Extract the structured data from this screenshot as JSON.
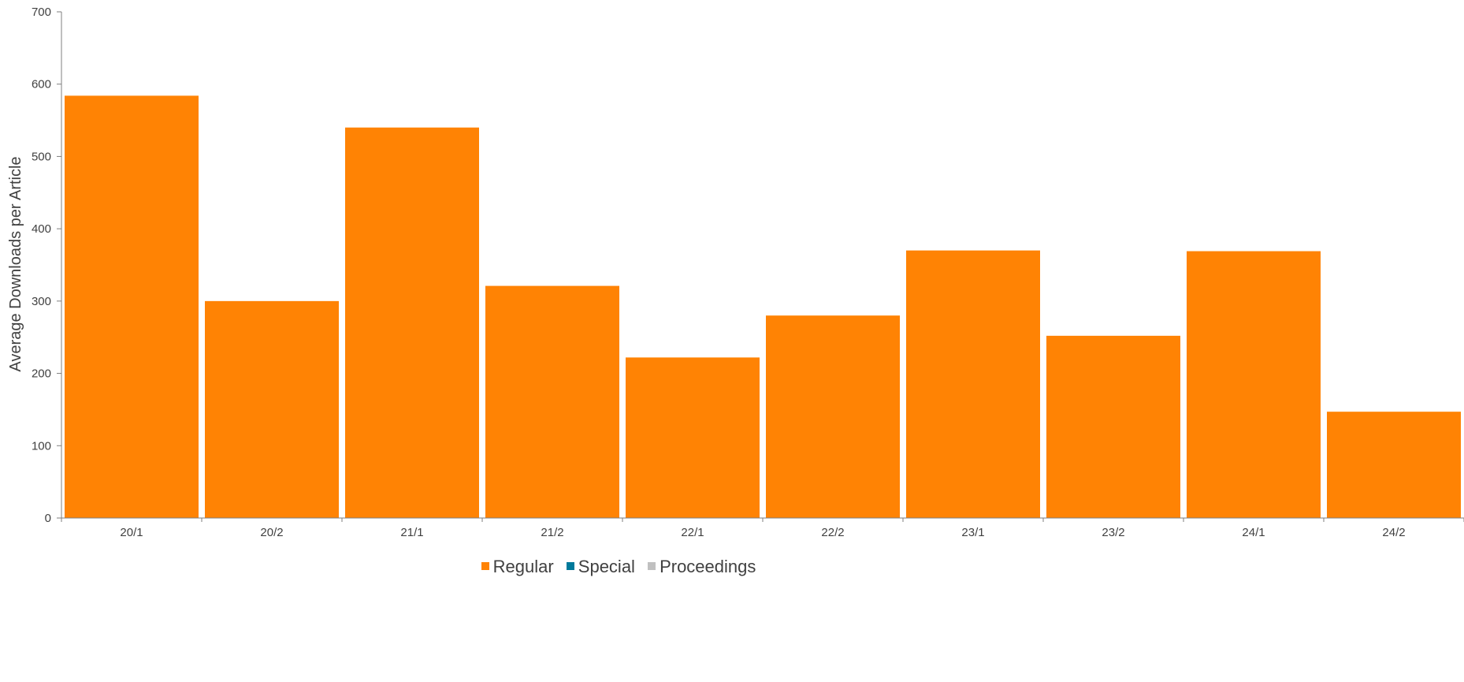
{
  "chart_data": {
    "type": "bar",
    "title": "",
    "xlabel": "",
    "ylabel": "Average Downloads per Article",
    "ylim": [
      0,
      700
    ],
    "yticks": [
      "0",
      "100",
      "200",
      "300",
      "400",
      "500",
      "600",
      "700"
    ],
    "categories": [
      "20/1",
      "20/2",
      "21/1",
      "21/2",
      "22/1",
      "22/2",
      "23/1",
      "23/2",
      "24/1",
      "24/2"
    ],
    "series": [
      {
        "name": "Regular",
        "color": "#ff8304",
        "values": [
          584,
          300,
          540,
          321,
          222,
          280,
          370,
          252,
          369,
          147
        ]
      },
      {
        "name": "Special",
        "color": "#007a9b",
        "values": [
          0,
          0,
          0,
          0,
          0,
          0,
          0,
          0,
          0,
          0
        ]
      },
      {
        "name": "Proceedings",
        "color": "#c0c0c0",
        "values": [
          0,
          0,
          0,
          0,
          0,
          0,
          0,
          0,
          0,
          0
        ]
      }
    ],
    "grid": false,
    "legend_position": "bottom"
  },
  "legend": {
    "items": [
      {
        "label": "Regular",
        "color": "#ff8304"
      },
      {
        "label": "Special",
        "color": "#007a9b"
      },
      {
        "label": "Proceedings",
        "color": "#c0c0c0"
      }
    ]
  }
}
